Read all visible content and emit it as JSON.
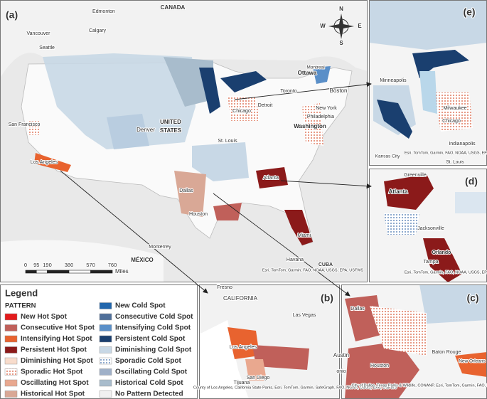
{
  "panels": [
    {
      "id": "(a)",
      "labels": [
        "CANADA",
        "Edmonton",
        "Calgary",
        "Vancouver",
        "Seattle",
        "Ottawa",
        "Montreal",
        "Toronto",
        "Boston",
        "Detroit",
        "Chicago",
        "New York",
        "Philadelphia",
        "Washington",
        "Denver",
        "UNITED",
        "STATES",
        "San Francisco",
        "Los Angeles",
        "St. Louis",
        "Atlanta",
        "Dallas",
        "Houston",
        "Miami",
        "Havana",
        "CUBA",
        "Monterrey",
        "MÉXICO",
        "Esri, TomTom, Garmin, FAO, NOAA, USGS, EPA, USFWS"
      ]
    },
    {
      "id": "(e)",
      "labels": [
        "Minneapolis",
        "Milwaukee",
        "Chicago",
        "Indianapolis",
        "Kansas City",
        "St. Louis",
        "Esri, TomTom, Garmin, FAO, NOAA, USGS, EPA, USFWS"
      ]
    },
    {
      "id": "(d)",
      "labels": [
        "Greenville",
        "Atlanta",
        "Jacksonville",
        "Orlando",
        "Tampa",
        "Esri, TomTom, Garmin, FAO, NOAA, USGS, EPA, USFWS"
      ]
    },
    {
      "id": "(b)",
      "labels": [
        "Fresno",
        "CALIFORNIA",
        "Las Vegas",
        "Los Angeles",
        "San Diego",
        "Tijuana",
        "County of Los Angeles, California State Parks, Esri, TomTom, Garmin, SafeGraph, FAO, NOAA, USGS, EPA, USFWS"
      ]
    },
    {
      "id": "(c)",
      "labels": [
        "Dallas",
        "Austin",
        "Houston",
        "Baton Rouge",
        "New Orleans",
        "onio",
        "City of Dallas, Texas Parks & Wildlife, CONANP, Esri, TomTom, Garmin, FAO, NOAA, USGS, EPA, USFWS"
      ]
    }
  ],
  "compass": [
    "N",
    "E",
    "S",
    "W"
  ],
  "scale": {
    "ticks": [
      0,
      95,
      190,
      380,
      570,
      760
    ],
    "unit": "Miles"
  },
  "legend": {
    "title": "Legend",
    "heading": "PATTERN",
    "hot": [
      {
        "label": "New Hot Spot",
        "color": "#e31a1c"
      },
      {
        "label": "Consecutive Hot Spot",
        "color": "#c0605a"
      },
      {
        "label": "Intensifying Hot Spot",
        "color": "#e8632f"
      },
      {
        "label": "Persistent Hot Spot",
        "color": "#8b1a1a"
      },
      {
        "label": "Diminishing Hot Spot",
        "color": "#f8dccc"
      },
      {
        "label": "Sporadic Hot Spot",
        "color": "#f4b8a0"
      },
      {
        "label": "Oscillating Hot Spot",
        "color": "#e9a88f"
      },
      {
        "label": "Historical Hot Spot",
        "color": "#d9a896"
      }
    ],
    "cold": [
      {
        "label": "New Cold Spot",
        "color": "#2166ac"
      },
      {
        "label": "Consecutive Cold Spot",
        "color": "#4f6f9a"
      },
      {
        "label": "Intensifying Cold Spot",
        "color": "#5a8fc8"
      },
      {
        "label": "Persistent Cold Spot",
        "color": "#1a3f6f"
      },
      {
        "label": "Diminishing Cold Spot",
        "color": "#c8d8e6"
      },
      {
        "label": "Sporadic Cold Spot",
        "color": "#b9cde0"
      },
      {
        "label": "Oscillating Cold Spot",
        "color": "#9fb0c8"
      },
      {
        "label": "Historical Cold Spot",
        "color": "#a8bccc"
      },
      {
        "label": "No Pattern Detected",
        "color": "#f0f0f0"
      }
    ]
  }
}
